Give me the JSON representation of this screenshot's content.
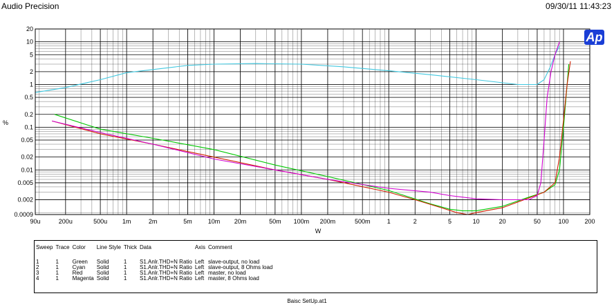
{
  "header": {
    "app_title": "Audio Precision",
    "timestamp": "09/30/11 11:43:23"
  },
  "logo": {
    "text": "Ap"
  },
  "chart_data": {
    "type": "line",
    "xlabel": "W",
    "ylabel": "%",
    "x_scale": "log",
    "y_scale": "log",
    "xlim": [
      9e-05,
      200
    ],
    "ylim": [
      0.0009,
      20
    ],
    "grid": true,
    "x_ticks": [
      {
        "v": 9e-05,
        "label": "90u"
      },
      {
        "v": 0.0002,
        "label": "200u"
      },
      {
        "v": 0.0005,
        "label": "500u"
      },
      {
        "v": 0.001,
        "label": "1m"
      },
      {
        "v": 0.002,
        "label": "2m"
      },
      {
        "v": 0.005,
        "label": "5m"
      },
      {
        "v": 0.01,
        "label": "10m"
      },
      {
        "v": 0.02,
        "label": "20m"
      },
      {
        "v": 0.05,
        "label": "50m"
      },
      {
        "v": 0.1,
        "label": "100m"
      },
      {
        "v": 0.2,
        "label": "200m"
      },
      {
        "v": 0.5,
        "label": "500m"
      },
      {
        "v": 1,
        "label": "1"
      },
      {
        "v": 2,
        "label": "2"
      },
      {
        "v": 5,
        "label": "5"
      },
      {
        "v": 10,
        "label": "10"
      },
      {
        "v": 20,
        "label": "20"
      },
      {
        "v": 50,
        "label": "50"
      },
      {
        "v": 100,
        "label": "100"
      },
      {
        "v": 200,
        "label": "200"
      }
    ],
    "y_ticks": [
      {
        "v": 0.0009,
        "label": "0.0009"
      },
      {
        "v": 0.002,
        "label": "0.002"
      },
      {
        "v": 0.005,
        "label": "0.005"
      },
      {
        "v": 0.01,
        "label": "0.01"
      },
      {
        "v": 0.02,
        "label": "0.02"
      },
      {
        "v": 0.05,
        "label": "0.05"
      },
      {
        "v": 0.1,
        "label": "0.1"
      },
      {
        "v": 0.2,
        "label": "0.2"
      },
      {
        "v": 0.5,
        "label": "0.5"
      },
      {
        "v": 1,
        "label": "1"
      },
      {
        "v": 2,
        "label": "2"
      },
      {
        "v": 5,
        "label": "5"
      },
      {
        "v": 10,
        "label": "10"
      },
      {
        "v": 20,
        "label": "20"
      }
    ],
    "series": [
      {
        "color": "#00c800",
        "points": [
          [
            0.00015,
            0.2
          ],
          [
            0.0005,
            0.09
          ],
          [
            0.002,
            0.055
          ],
          [
            0.01,
            0.03
          ],
          [
            0.05,
            0.013
          ],
          [
            0.2,
            0.007
          ],
          [
            1,
            0.0033
          ],
          [
            3,
            0.0016
          ],
          [
            5,
            0.0012
          ],
          [
            7,
            0.0011
          ],
          [
            10,
            0.0011
          ],
          [
            20,
            0.0014
          ],
          [
            40,
            0.0023
          ],
          [
            60,
            0.003
          ],
          [
            80,
            0.0045
          ],
          [
            90,
            0.01
          ],
          [
            100,
            0.1
          ],
          [
            110,
            1
          ],
          [
            115,
            3
          ]
        ]
      },
      {
        "color": "#40c8e0",
        "points": [
          [
            9e-05,
            0.65
          ],
          [
            0.0002,
            0.85
          ],
          [
            0.0005,
            1.3
          ],
          [
            0.001,
            1.9
          ],
          [
            0.005,
            2.8
          ],
          [
            0.01,
            3.0
          ],
          [
            0.03,
            3.1
          ],
          [
            0.1,
            3.0
          ],
          [
            0.3,
            2.6
          ],
          [
            1,
            2.1
          ],
          [
            3,
            1.7
          ],
          [
            10,
            1.3
          ],
          [
            30,
            1.0
          ],
          [
            50,
            1.0
          ],
          [
            60,
            1.3
          ],
          [
            70,
            2.5
          ],
          [
            80,
            5
          ],
          [
            90,
            8
          ]
        ]
      },
      {
        "color": "#d02000",
        "points": [
          [
            0.00014,
            0.14
          ],
          [
            0.0005,
            0.07
          ],
          [
            0.002,
            0.04
          ],
          [
            0.01,
            0.02
          ],
          [
            0.05,
            0.01
          ],
          [
            0.2,
            0.006
          ],
          [
            1,
            0.003
          ],
          [
            2,
            0.002
          ],
          [
            4,
            0.0013
          ],
          [
            6,
            0.001
          ],
          [
            8,
            0.0009
          ],
          [
            10,
            0.001
          ],
          [
            20,
            0.0013
          ],
          [
            40,
            0.0022
          ],
          [
            60,
            0.003
          ],
          [
            80,
            0.005
          ],
          [
            90,
            0.02
          ],
          [
            100,
            0.15
          ],
          [
            110,
            1
          ],
          [
            120,
            3.5
          ]
        ]
      },
      {
        "color": "#d000d0",
        "points": [
          [
            0.00014,
            0.14
          ],
          [
            0.0005,
            0.075
          ],
          [
            0.002,
            0.04
          ],
          [
            0.01,
            0.018
          ],
          [
            0.05,
            0.01
          ],
          [
            0.2,
            0.006
          ],
          [
            1,
            0.0037
          ],
          [
            3,
            0.003
          ],
          [
            5,
            0.0025
          ],
          [
            10,
            0.0021
          ],
          [
            20,
            0.002
          ],
          [
            40,
            0.002
          ],
          [
            50,
            0.0025
          ],
          [
            55,
            0.005
          ],
          [
            60,
            0.05
          ],
          [
            65,
            0.5
          ],
          [
            72,
            2
          ],
          [
            80,
            5
          ],
          [
            90,
            10
          ]
        ]
      }
    ]
  },
  "legend": {
    "headers": [
      "Sweep",
      "Trace",
      "Color",
      "Line Style",
      "Thick",
      "Data",
      "Axis",
      "Comment"
    ],
    "rows": [
      [
        "1",
        "1",
        "Green",
        "Solid",
        "1",
        "S1.Anlr.THD+N Ratio",
        "Left",
        "slave-output, no load"
      ],
      [
        "2",
        "1",
        "Cyan",
        "Solid",
        "1",
        "S1.Anlr.THD+N Ratio",
        "Left",
        "slave-output, 8 Ohms load"
      ],
      [
        "3",
        "1",
        "Red",
        "Solid",
        "1",
        "S1.Anlr.THD+N Ratio",
        "Left",
        "master, no load"
      ],
      [
        "4",
        "1",
        "Magenta",
        "Solid",
        "1",
        "S1.Anlr.THD+N Ratio",
        "Left",
        "master, 8 Ohms load"
      ]
    ]
  },
  "footer": {
    "filename": "Baisc SetUp.at1"
  }
}
